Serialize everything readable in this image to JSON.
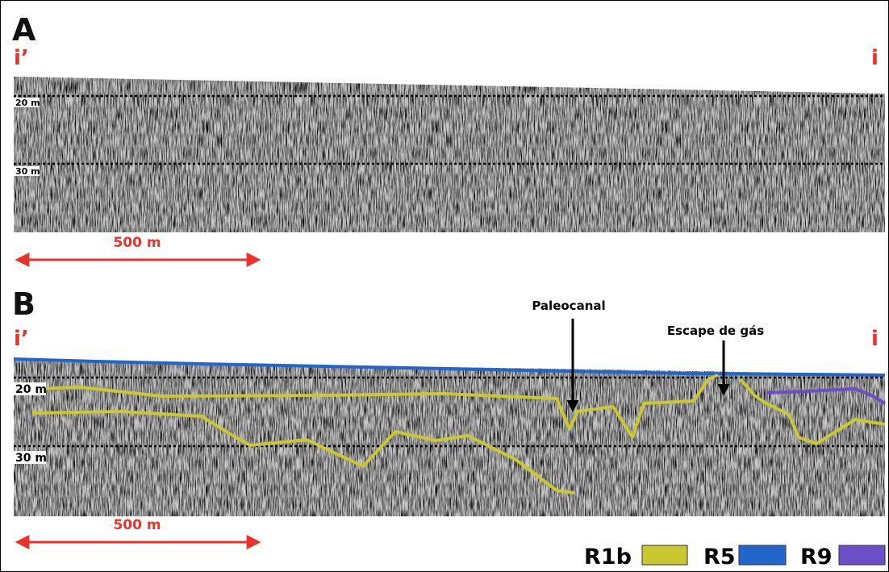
{
  "panels": [
    {
      "label": "A",
      "left_marker": "i’",
      "right_marker": "i",
      "depth_labels": [
        "20 m",
        "30 m"
      ],
      "scale_bar": "500 m"
    },
    {
      "label": "B",
      "left_marker": "i’",
      "right_marker": "i",
      "depth_labels": [
        "20 m",
        "30 m"
      ],
      "scale_bar": "500 m",
      "annotations": [
        "Paleocanal",
        "Escape de gás"
      ]
    }
  ],
  "legend": [
    {
      "label": "R1b",
      "color": "#c9c832"
    },
    {
      "label": "R5",
      "color": "#2266cc"
    },
    {
      "label": "R9",
      "color": "#6a4fc6"
    }
  ]
}
